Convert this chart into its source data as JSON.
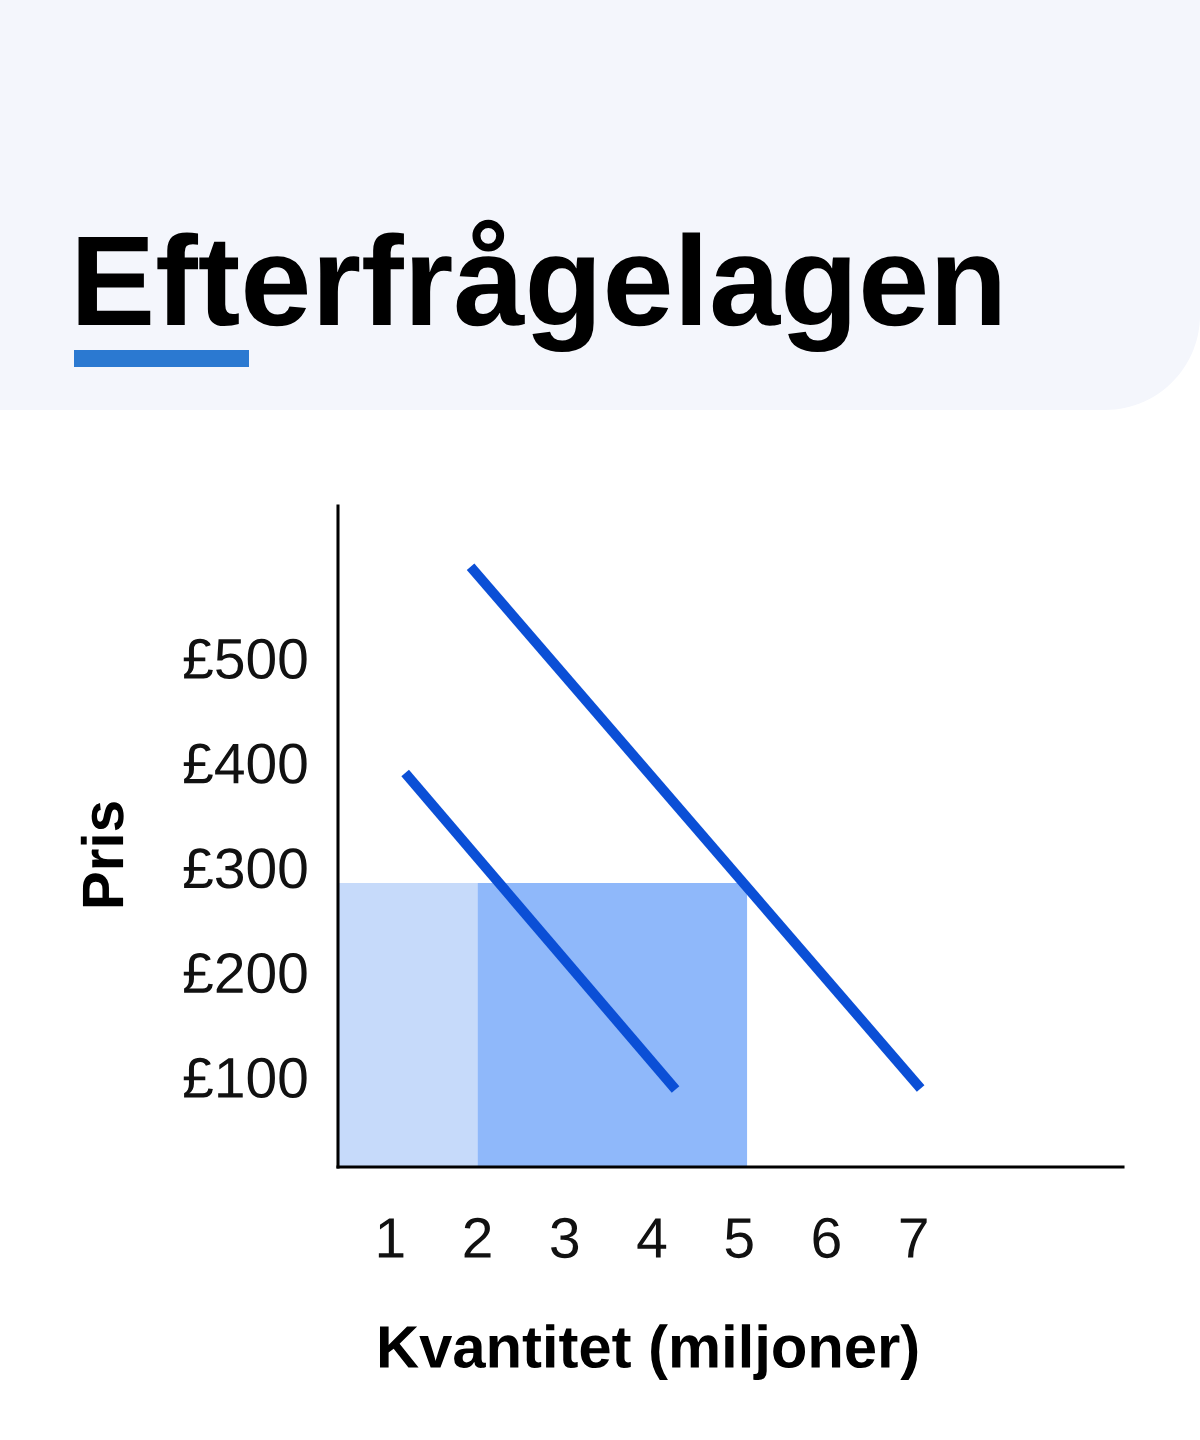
{
  "chart_data": {
    "type": "line",
    "title": "Efterfrågelagen",
    "xlabel": "Kvantitet (miljoner)",
    "ylabel": "Pris",
    "xlim": [
      0.4,
      9.4
    ],
    "ylim": [
      14,
      645
    ],
    "xticks": [
      1,
      2,
      3,
      4,
      5,
      6,
      7
    ],
    "yticks": [
      {
        "value": 100,
        "label": "£100"
      },
      {
        "value": 200,
        "label": "£200"
      },
      {
        "value": 300,
        "label": "£300"
      },
      {
        "value": 400,
        "label": "£400"
      },
      {
        "value": 500,
        "label": "£500"
      }
    ],
    "series": [
      {
        "type": "area",
        "color": "#c6dafa",
        "x": [
          0.4,
          2
        ],
        "values": [
          285,
          285
        ]
      },
      {
        "type": "area",
        "color": "#8fb8fa",
        "x": [
          2,
          5.09
        ],
        "values": [
          285,
          285
        ]
      },
      {
        "color": "#0b4fd6",
        "x": [
          1.17,
          4.27
        ],
        "values": [
          390,
          88
        ]
      },
      {
        "color": "#0b4fd6",
        "x": [
          1.92,
          7.08
        ],
        "values": [
          587,
          89
        ]
      }
    ]
  }
}
